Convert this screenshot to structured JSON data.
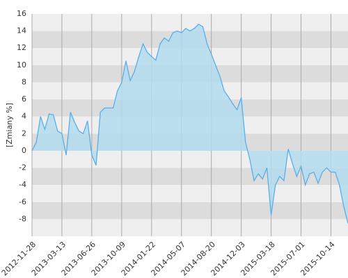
{
  "chart_data": {
    "type": "area",
    "y_label": "[Zmiany %]",
    "categories": [
      "2012-11-28",
      null,
      null,
      null,
      null,
      null,
      null,
      "2013-03-13",
      null,
      null,
      null,
      null,
      null,
      null,
      "2013-06-26",
      null,
      null,
      null,
      null,
      null,
      null,
      "2013-10-09",
      null,
      null,
      null,
      null,
      null,
      null,
      "2014-01-22",
      null,
      null,
      null,
      null,
      null,
      null,
      "2014-05-07",
      null,
      null,
      null,
      null,
      null,
      null,
      "2014-08-20",
      null,
      null,
      null,
      null,
      null,
      null,
      "2014-12-03",
      null,
      null,
      null,
      null,
      null,
      null,
      "2015-03-18",
      null,
      null,
      null,
      null,
      null,
      null,
      "2015-07-01",
      null,
      null,
      null,
      null,
      null,
      null,
      "2015-10-14",
      null,
      null,
      null,
      null
    ],
    "values": [
      0,
      1,
      4,
      2.5,
      4.3,
      4.2,
      2.3,
      2,
      -0.5,
      4.5,
      3.3,
      2.3,
      2,
      3.5,
      -0.5,
      -1.7,
      4.5,
      5,
      5,
      5,
      7,
      8,
      10.5,
      8.2,
      9.3,
      11,
      12.5,
      11.5,
      11,
      10.6,
      12.5,
      13.2,
      12.8,
      13.8,
      14,
      13.8,
      14.3,
      14,
      14.3,
      14.8,
      14.5,
      12.5,
      11.3,
      10,
      8.7,
      7,
      6.3,
      5.5,
      4.8,
      6.2,
      1,
      -1,
      -3.5,
      -2.7,
      -3.3,
      -2,
      -7.5,
      -4,
      -3,
      -3.5,
      0.2,
      -1.5,
      -3,
      -1.8,
      -4,
      -2.7,
      -2.5,
      -3.8,
      -2.5,
      -2,
      -2.5,
      -2.5,
      -4,
      -6.5,
      -8.5
    ],
    "color": "#5aaee8",
    "fill_color": "#b3dcef",
    "band_colors": [
      "#efefef",
      "#dcdcdc"
    ],
    "grid_color": "#aaaaaa",
    "ylim": [
      -10,
      16
    ],
    "yticks": [
      -8,
      -6,
      -4,
      -2,
      0,
      2,
      4,
      6,
      8,
      10,
      12,
      14,
      16
    ],
    "grid": true
  }
}
